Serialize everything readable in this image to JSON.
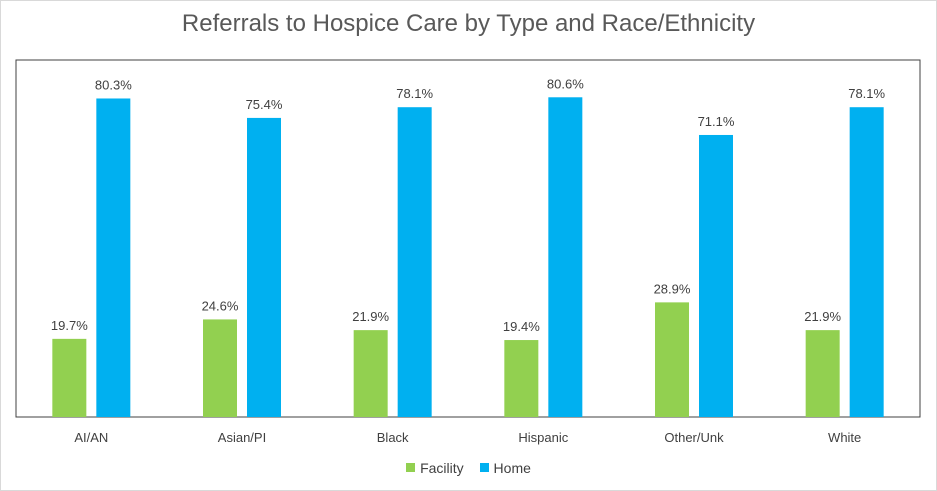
{
  "chart_data": {
    "type": "bar",
    "title": "Referrals to Hospice Care by Type and Race/Ethnicity",
    "categories": [
      "AI/AN",
      "Asian/PI",
      "Black",
      "Hispanic",
      "Other/Unk",
      "White"
    ],
    "series": [
      {
        "name": "Facility",
        "color": "#92d050",
        "values": [
          19.7,
          24.6,
          21.9,
          19.4,
          28.9,
          21.9
        ],
        "labels": [
          "19.7%",
          "24.6%",
          "21.9%",
          "19.4%",
          "28.9%",
          "21.9%"
        ]
      },
      {
        "name": "Home",
        "color": "#00b0f0",
        "values": [
          80.3,
          75.4,
          78.1,
          80.6,
          71.1,
          78.1
        ],
        "labels": [
          "80.3%",
          "75.4%",
          "78.1%",
          "80.6%",
          "71.1%",
          "78.1%"
        ]
      }
    ],
    "ylim": [
      0,
      90
    ],
    "xlabel": "",
    "ylabel": "",
    "grid": false,
    "legend": "bottom-center"
  }
}
